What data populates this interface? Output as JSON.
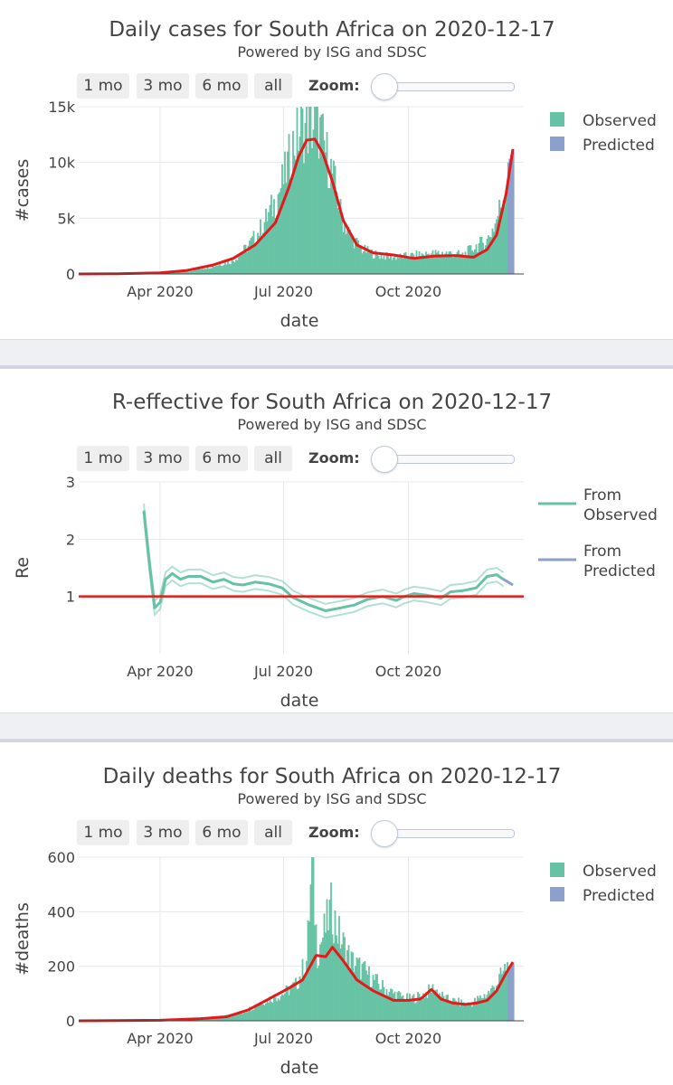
{
  "range_buttons": [
    "1 mo",
    "3 mo",
    "6 mo",
    "all"
  ],
  "zoom_label": "Zoom:",
  "colors": {
    "observed": "#66c2a5",
    "predicted": "#8da0cb",
    "model_line": "#e31a1c",
    "reference_line": "#e31a1c"
  },
  "chart_data": [
    {
      "type": "bar",
      "title": "Daily cases for South Africa on 2020-12-17",
      "subtitle": "Powered by ISG and SDSC",
      "xlabel": "date",
      "ylabel": "#cases",
      "x_range": [
        "2020-02-01",
        "2020-12-25"
      ],
      "ylim": [
        0,
        15000
      ],
      "x_ticks": [
        "Apr 2020",
        "Jul 2020",
        "Oct 2020"
      ],
      "y_ticks": [
        "0",
        "5k",
        "10k",
        "15k"
      ],
      "grid": true,
      "legend": [
        "Observed",
        "Predicted"
      ],
      "legend_position": "top-right",
      "bar_series": {
        "observed_dates": [
          "2020-03-05",
          "2020-04-01",
          "2020-04-20",
          "2020-05-10",
          "2020-05-25",
          "2020-06-05",
          "2020-06-15",
          "2020-06-25",
          "2020-07-02",
          "2020-07-08",
          "2020-07-14",
          "2020-07-20",
          "2020-07-26",
          "2020-08-01",
          "2020-08-07",
          "2020-08-13",
          "2020-08-20",
          "2020-08-28",
          "2020-09-08",
          "2020-09-20",
          "2020-10-01",
          "2020-10-15",
          "2020-10-28",
          "2020-11-10",
          "2020-11-20",
          "2020-11-28",
          "2020-12-04",
          "2020-12-10",
          "2020-12-14"
        ],
        "observed_values": [
          10,
          50,
          200,
          700,
          1200,
          2500,
          4200,
          6500,
          8800,
          11500,
          13000,
          13200,
          13500,
          11000,
          8500,
          5000,
          3300,
          2200,
          1700,
          1500,
          1600,
          1800,
          1900,
          1700,
          2500,
          3000,
          4500,
          7000,
          9500
        ],
        "predicted_dates": [
          "2020-12-14",
          "2020-12-17"
        ],
        "predicted_values": [
          10000,
          11000
        ]
      },
      "line_series": {
        "dates": [
          "2020-02-01",
          "2020-03-01",
          "2020-04-01",
          "2020-04-20",
          "2020-05-10",
          "2020-05-25",
          "2020-06-10",
          "2020-06-25",
          "2020-07-05",
          "2020-07-12",
          "2020-07-18",
          "2020-07-24",
          "2020-07-30",
          "2020-08-06",
          "2020-08-14",
          "2020-08-24",
          "2020-09-05",
          "2020-09-20",
          "2020-10-05",
          "2020-10-20",
          "2020-11-05",
          "2020-11-18",
          "2020-11-28",
          "2020-12-05",
          "2020-12-12",
          "2020-12-17"
        ],
        "values": [
          0,
          20,
          100,
          300,
          800,
          1400,
          2600,
          4600,
          7800,
          10500,
          12000,
          12100,
          10800,
          8300,
          4800,
          2600,
          1900,
          1700,
          1400,
          1600,
          1650,
          1500,
          2200,
          3500,
          7200,
          11200
        ]
      }
    },
    {
      "type": "line",
      "title": "R-effective for South Africa on 2020-12-17",
      "subtitle": "Powered by ISG and SDSC",
      "xlabel": "date",
      "ylabel": "Re",
      "x_range": [
        "2020-02-01",
        "2020-12-25"
      ],
      "ylim": [
        0,
        3
      ],
      "x_ticks": [
        "Apr 2020",
        "Jul 2020",
        "Oct 2020"
      ],
      "y_ticks": [
        "1",
        "2",
        "3"
      ],
      "grid": true,
      "legend": [
        "From Observed",
        "From Predicted"
      ],
      "legend_position": "top-right",
      "reference_line": 1,
      "series": [
        {
          "name": "From Observed",
          "dates": [
            "2020-03-20",
            "2020-03-24",
            "2020-03-28",
            "2020-04-01",
            "2020-04-05",
            "2020-04-10",
            "2020-04-16",
            "2020-04-22",
            "2020-05-01",
            "2020-05-10",
            "2020-05-18",
            "2020-05-25",
            "2020-06-01",
            "2020-06-10",
            "2020-06-20",
            "2020-06-30",
            "2020-07-08",
            "2020-07-20",
            "2020-08-01",
            "2020-08-12",
            "2020-08-22",
            "2020-09-01",
            "2020-09-12",
            "2020-09-22",
            "2020-09-28",
            "2020-10-05",
            "2020-10-15",
            "2020-10-25",
            "2020-11-01",
            "2020-11-10",
            "2020-11-20",
            "2020-11-28",
            "2020-12-05",
            "2020-12-10"
          ],
          "values": [
            2.5,
            1.6,
            0.8,
            0.9,
            1.3,
            1.4,
            1.3,
            1.35,
            1.35,
            1.25,
            1.3,
            1.22,
            1.2,
            1.25,
            1.22,
            1.15,
            0.98,
            0.85,
            0.75,
            0.8,
            0.85,
            0.95,
            1.0,
            0.93,
            1.0,
            1.05,
            1.02,
            0.97,
            1.08,
            1.1,
            1.15,
            1.35,
            1.38,
            1.3
          ]
        },
        {
          "name": "From Predicted",
          "dates": [
            "2020-12-10",
            "2020-12-17"
          ],
          "values": [
            1.3,
            1.2
          ]
        }
      ]
    },
    {
      "type": "bar",
      "title": "Daily deaths for South Africa on 2020-12-17",
      "subtitle": "Powered by ISG and SDSC",
      "xlabel": "date",
      "ylabel": "#deaths",
      "x_range": [
        "2020-02-01",
        "2020-12-25"
      ],
      "ylim": [
        0,
        600
      ],
      "x_ticks": [
        "Apr 2020",
        "Jul 2020",
        "Oct 2020"
      ],
      "y_ticks": [
        "0",
        "200",
        "400",
        "600"
      ],
      "grid": true,
      "legend": [
        "Observed",
        "Predicted"
      ],
      "legend_position": "top-right",
      "bar_series": {
        "observed_dates": [
          "2020-04-05",
          "2020-05-10",
          "2020-06-01",
          "2020-06-15",
          "2020-07-01",
          "2020-07-10",
          "2020-07-18",
          "2020-07-22",
          "2020-07-26",
          "2020-08-01",
          "2020-08-05",
          "2020-08-12",
          "2020-08-20",
          "2020-08-30",
          "2020-09-10",
          "2020-09-20",
          "2020-10-01",
          "2020-10-10",
          "2020-10-20",
          "2020-10-28",
          "2020-11-05",
          "2020-11-15",
          "2020-11-25",
          "2020-12-01",
          "2020-12-08",
          "2020-12-13"
        ],
        "observed_values": [
          2,
          10,
          30,
          70,
          100,
          130,
          220,
          570,
          250,
          340,
          410,
          300,
          220,
          180,
          130,
          100,
          80,
          90,
          120,
          80,
          70,
          60,
          90,
          110,
          160,
          200
        ],
        "predicted_dates": [
          "2020-12-14",
          "2020-12-17"
        ],
        "predicted_values": [
          190,
          210
        ]
      },
      "line_series": {
        "dates": [
          "2020-02-01",
          "2020-04-01",
          "2020-05-01",
          "2020-05-20",
          "2020-06-05",
          "2020-06-20",
          "2020-07-05",
          "2020-07-15",
          "2020-07-25",
          "2020-08-01",
          "2020-08-06",
          "2020-08-14",
          "2020-08-24",
          "2020-09-05",
          "2020-09-20",
          "2020-10-01",
          "2020-10-10",
          "2020-10-18",
          "2020-10-25",
          "2020-11-03",
          "2020-11-12",
          "2020-11-20",
          "2020-11-28",
          "2020-12-05",
          "2020-12-12",
          "2020-12-17"
        ],
        "values": [
          0,
          2,
          8,
          15,
          40,
          80,
          120,
          150,
          240,
          235,
          270,
          220,
          150,
          110,
          75,
          75,
          80,
          115,
          80,
          65,
          60,
          65,
          75,
          110,
          175,
          215
        ]
      }
    }
  ]
}
